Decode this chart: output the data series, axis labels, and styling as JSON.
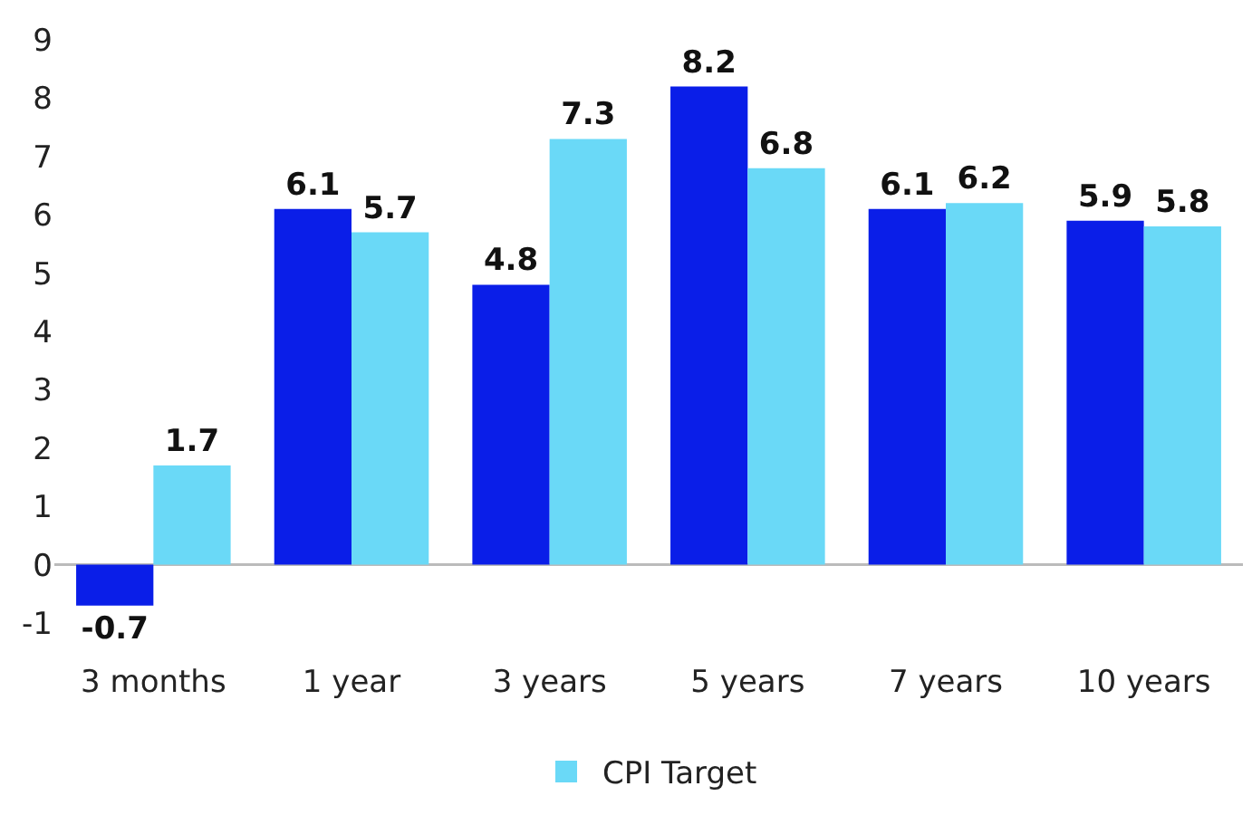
{
  "chart_data": {
    "type": "bar",
    "categories": [
      "3 months",
      "1 year",
      "3 years",
      "5 years",
      "7 years",
      "10 years"
    ],
    "series": [
      {
        "color": "#0a1ee8",
        "values": [
          -0.7,
          6.1,
          4.8,
          8.2,
          6.1,
          5.9
        ]
      },
      {
        "name": "CPI Target",
        "color": "#6ad9f7",
        "values": [
          1.7,
          5.7,
          7.3,
          6.8,
          6.2,
          5.8
        ]
      }
    ],
    "ylim": [
      -1,
      9
    ],
    "ref_lines": [
      {
        "axis": "y",
        "value": 0,
        "color": "#bbbbbb"
      }
    ],
    "yticks": [
      -1,
      0,
      1,
      2,
      3,
      4,
      5,
      6,
      7,
      8,
      9
    ],
    "grid": false,
    "data_labels": true,
    "legend": "bottom"
  }
}
